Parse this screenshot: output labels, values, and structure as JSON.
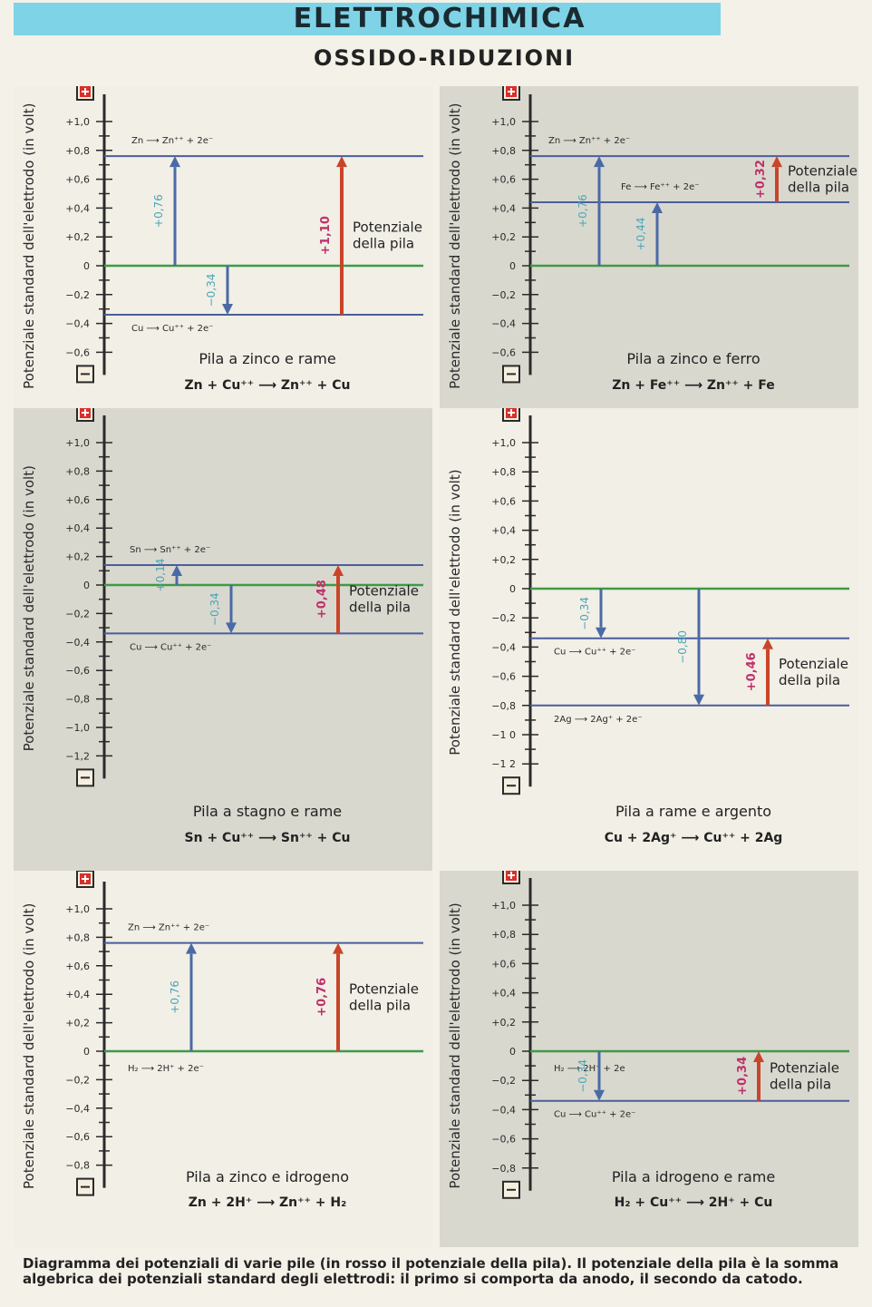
{
  "header": {
    "title": "ELETTROCHIMICA",
    "subtitle": "OSSIDO-RIDUZIONI"
  },
  "colors": {
    "banner": "#7fd3e6",
    "zero_line": "#3f9a45",
    "level_line": "#4a5e9c",
    "electrode_arrow": "#4a6aa6",
    "electrode_label": "#4aa6b8",
    "cell_arrow": "#c9452a",
    "cell_label": "#c0306a",
    "tint_panel": "#d9d8cf",
    "plain_panel": "#f1efe6"
  },
  "icons": {
    "positive": "plus-box-icon",
    "negative": "minus-box-icon"
  },
  "axis_label": "Potenziale standard dell'elettrodo (in volt)",
  "cell_label_text": [
    "Potenziale",
    "della pila"
  ],
  "panels": [
    {
      "title": "Pila a zinco e rame",
      "reaction": "Zn + Cu⁺⁺ ⟶ Zn⁺⁺ + Cu",
      "ticks": [
        "+1,0",
        "+0,8",
        "+0,6",
        "+0,4",
        "+0,2",
        "0",
        "−0,2",
        "−0,4",
        "−0,6"
      ],
      "vmin": -0.6,
      "vmax": 1.0,
      "levels": [
        {
          "value": 0.76,
          "label": "Zn ⟶ Zn⁺⁺ + 2e⁻"
        },
        {
          "value": -0.34,
          "label": "Cu ⟶ Cu⁺⁺ + 2e⁻"
        }
      ],
      "electrode_arrows": [
        {
          "from": 0,
          "to": 0.76,
          "label": "+0,76"
        },
        {
          "from": 0,
          "to": -0.34,
          "label": "−0,34"
        }
      ],
      "cell": {
        "from": -0.34,
        "to": 0.76,
        "label": "+1,10"
      }
    },
    {
      "title": "Pila a zinco e ferro",
      "reaction": "Zn + Fe⁺⁺ ⟶ Zn⁺⁺ + Fe",
      "ticks": [
        "+1,0",
        "+0,8",
        "+0,6",
        "+0,4",
        "+0,2",
        "0",
        "−0,2",
        "−0,4",
        "−0,6"
      ],
      "vmin": -0.6,
      "vmax": 1.0,
      "levels": [
        {
          "value": 0.76,
          "label": "Zn ⟶ Zn⁺⁺ + 2e⁻"
        },
        {
          "value": 0.44,
          "label": "Fe ⟶ Fe⁺⁺ + 2e⁻"
        }
      ],
      "electrode_arrows": [
        {
          "from": 0,
          "to": 0.76,
          "label": "+0,76"
        },
        {
          "from": 0,
          "to": 0.44,
          "label": "+0,44"
        }
      ],
      "cell": {
        "from": 0.44,
        "to": 0.76,
        "label": "+0,32"
      }
    },
    {
      "title": "Pila a stagno e rame",
      "reaction": "Sn + Cu⁺⁺ ⟶ Sn⁺⁺ + Cu",
      "ticks": [
        "+1,0",
        "+0,8",
        "+0,6",
        "+0,4",
        "+0,2",
        "0",
        "−0,2",
        "−0,4",
        "−0,6",
        "−0,8",
        "−1,0",
        "−1,2"
      ],
      "vmin": -1.2,
      "vmax": 1.0,
      "levels": [
        {
          "value": 0.14,
          "label": "Sn ⟶ Sn⁺⁺ + 2e⁻"
        },
        {
          "value": -0.34,
          "label": "Cu ⟶ Cu⁺⁺ + 2e⁻"
        }
      ],
      "electrode_arrows": [
        {
          "from": 0,
          "to": 0.14,
          "label": "+0,14"
        },
        {
          "from": 0,
          "to": -0.34,
          "label": "−0,34"
        }
      ],
      "cell": {
        "from": -0.34,
        "to": 0.14,
        "label": "+0,48"
      }
    },
    {
      "title": "Pila a rame e argento",
      "reaction": "Cu + 2Ag⁺ ⟶ Cu⁺⁺ + 2Ag",
      "ticks": [
        "+1,0",
        "+0,8",
        "+0,6",
        "+0,4",
        "+0,2",
        "0",
        "−0,2",
        "−0,4",
        "−0,6",
        "−0,8",
        "−1 0",
        "−1 2"
      ],
      "vmin": -1.2,
      "vmax": 1.0,
      "levels": [
        {
          "value": -0.34,
          "label": "Cu ⟶ Cu⁺⁺ + 2e⁻"
        },
        {
          "value": -0.8,
          "label": "2Ag ⟶ 2Ag⁺ + 2e⁻"
        }
      ],
      "electrode_arrows": [
        {
          "from": 0,
          "to": -0.34,
          "label": "−0,34"
        },
        {
          "from": 0,
          "to": -0.8,
          "label": "−0,80"
        }
      ],
      "cell": {
        "from": -0.8,
        "to": -0.34,
        "label": "+0,46"
      }
    },
    {
      "title": "Pila a zinco e idrogeno",
      "reaction": "Zn + 2H⁺ ⟶ Zn⁺⁺ + H₂",
      "ticks": [
        "+1,0",
        "+0,8",
        "+0,6",
        "+0,4",
        "+0,2",
        "0",
        "−0,2",
        "−0,4",
        "−0,6",
        "−0,8"
      ],
      "vmin": -0.8,
      "vmax": 1.0,
      "levels": [
        {
          "value": 0.76,
          "label": "Zn ⟶ Zn⁺⁺ + 2e⁻"
        },
        {
          "value": 0,
          "label": "H₂ ⟶ 2H⁺ + 2e⁻"
        }
      ],
      "electrode_arrows": [
        {
          "from": 0,
          "to": 0.76,
          "label": "+0,76"
        }
      ],
      "cell": {
        "from": 0,
        "to": 0.76,
        "label": "+0,76"
      }
    },
    {
      "title": "Pila a idrogeno e rame",
      "reaction": "H₂ + Cu⁺⁺ ⟶ 2H⁺ + Cu",
      "ticks": [
        "+1,0",
        "+0,8",
        "+0,6",
        "+0,4",
        "+0,2",
        "0",
        "−0,2",
        "−0,4",
        "−0,6",
        "−0,8"
      ],
      "vmin": -0.8,
      "vmax": 1.0,
      "levels": [
        {
          "value": 0,
          "label": "H₂ ⟶ 2H⁺ + 2e"
        },
        {
          "value": -0.34,
          "label": "Cu ⟶ Cu⁺⁺ + 2e⁻"
        }
      ],
      "electrode_arrows": [
        {
          "from": 0,
          "to": -0.34,
          "label": "−0,34"
        }
      ],
      "cell": {
        "from": -0.34,
        "to": 0,
        "label": "+0,34"
      }
    }
  ],
  "caption": "Diagramma dei potenziali di varie pile (in rosso il potenziale della pila). Il potenziale della pila è la somma algebrica dei potenziali standard degli elettrodi: il primo si comporta da anodo, il secondo da catodo."
}
